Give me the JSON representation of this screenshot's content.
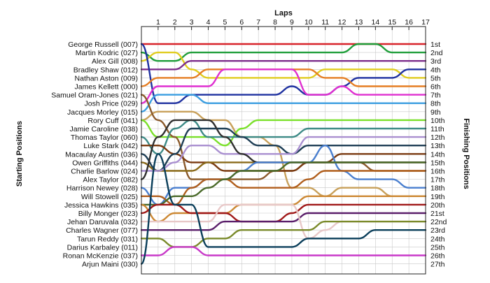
{
  "chart_data": {
    "type": "line",
    "title": "",
    "xlabel": "Laps",
    "ylabel_left": "Starting Positions",
    "ylabel_right": "Finishing Positions",
    "laps": [
      1,
      2,
      3,
      4,
      5,
      6,
      7,
      8,
      9,
      10,
      11,
      12,
      13,
      14,
      15,
      16,
      17
    ],
    "xlim": [
      0,
      17
    ],
    "ylim": [
      1,
      27
    ],
    "grid": true,
    "drivers": [
      "George Russell (007)",
      "Martin Kodric (027)",
      "Alex Gill (008)",
      "Bradley Shaw (012)",
      "Nathan Aston (009)",
      "James Kellett (000)",
      "Samuel Oram-Jones (021)",
      "Josh Price (029)",
      "Jacques Morley (015)",
      "Rory Cuff (041)",
      "Jamie Caroline (038)",
      "Thomas Taylor (060)",
      "Luke Stark (042)",
      "Macaulay Austin (036)",
      "Owen Griffiths (044)",
      "Charlie Barlow (024)",
      "Alex Taylor (082)",
      "Harrison Newey (028)",
      "Will Stowell (025)",
      "Jessica Hawkins (035)",
      "Billy Monger (023)",
      "Jehan Daruvala (032)",
      "Charles Wagner (077)",
      "Tarun Reddy (031)",
      "Darius Karbaley (011)",
      "Ronan McKenzie (037)",
      "Arjun Maini (030)"
    ],
    "finishing_labels": [
      "1st",
      "2nd",
      "3rd",
      "4th",
      "5th",
      "6th",
      "7th",
      "8th",
      "9th",
      "10th",
      "11th",
      "12th",
      "13th",
      "14th",
      "15th",
      "16th",
      "17th",
      "18th",
      "19th",
      "20th",
      "21st",
      "22nd",
      "23rd",
      "24th",
      "25th",
      "26th",
      "27th"
    ],
    "series": [
      {
        "color": "#d8232a",
        "positions": [
          1,
          1,
          1,
          1,
          1,
          1,
          1,
          1,
          1,
          1,
          1,
          1,
          1,
          1,
          1,
          1,
          1,
          1
        ]
      },
      {
        "color": "#1f9e3a",
        "positions": [
          2,
          3,
          3,
          2,
          2,
          2,
          2,
          2,
          2,
          2,
          2,
          2,
          2,
          1,
          1,
          2,
          2,
          2
        ]
      },
      {
        "color": "#e0cc1e",
        "positions": [
          3,
          2,
          2,
          4,
          5,
          5,
          5,
          5,
          5,
          5,
          5,
          4,
          4,
          4,
          4,
          4,
          5,
          5
        ]
      },
      {
        "color": "#7d2f8c",
        "positions": [
          4,
          4,
          4,
          3,
          3,
          3,
          3,
          3,
          3,
          3,
          3,
          3,
          3,
          3,
          3,
          3,
          3,
          3
        ]
      },
      {
        "color": "#1f31a0",
        "positions": [
          1,
          8,
          8,
          7,
          7,
          7,
          7,
          7,
          7,
          6,
          7,
          7,
          6,
          5,
          5,
          5,
          4,
          4
        ]
      },
      {
        "color": "#e57e23",
        "positions": [
          6,
          5,
          5,
          5,
          4,
          4,
          4,
          4,
          4,
          4,
          4,
          5,
          5,
          6,
          6,
          6,
          6,
          6
        ]
      },
      {
        "color": "#df2fd0",
        "positions": [
          8,
          6,
          6,
          6,
          6,
          4,
          4,
          4,
          4,
          4,
          7,
          7,
          6,
          7,
          7,
          7,
          7,
          7
        ]
      },
      {
        "color": "#3a9de0",
        "positions": [
          9,
          7,
          7,
          7,
          8,
          8,
          8,
          8,
          8,
          8,
          8,
          8,
          8,
          8,
          8,
          8,
          8,
          8
        ]
      },
      {
        "color": "#c8a05a",
        "positions": [
          10,
          9,
          9,
          9,
          10,
          10,
          12,
          12,
          13,
          18,
          18,
          19,
          18,
          18,
          18,
          19,
          19,
          19
        ]
      },
      {
        "color": "#7ae02a",
        "positions": [
          10,
          12,
          12,
          12,
          12,
          13,
          11,
          10,
          10,
          10,
          10,
          10,
          10,
          10,
          10,
          10,
          10,
          10
        ]
      },
      {
        "color": "#8b5a2b",
        "positions": [
          7,
          10,
          12,
          17,
          17,
          17,
          17,
          17,
          16,
          16,
          15,
          15,
          15,
          15,
          16,
          16,
          16,
          16
        ]
      },
      {
        "color": "#3d8a86",
        "positions": [
          12,
          14,
          11,
          10,
          12,
          12,
          12,
          12,
          12,
          12,
          11,
          11,
          11,
          11,
          11,
          11,
          11,
          11
        ]
      },
      {
        "color": "#7a3a10",
        "positions": [
          13,
          13,
          14,
          15,
          15,
          16,
          16,
          16,
          16,
          16,
          15,
          15,
          14,
          14,
          14,
          14,
          14,
          14
        ]
      },
      {
        "color": "#1e3e55",
        "positions": [
          14,
          16,
          14,
          11,
          11,
          11,
          12,
          13,
          13,
          14,
          13,
          13,
          13,
          13,
          13,
          13,
          13,
          13
        ]
      },
      {
        "color": "#8a6a1a",
        "positions": [
          15,
          16,
          16,
          16,
          15,
          15,
          15,
          15,
          15,
          15,
          15,
          15,
          15,
          15,
          15,
          15,
          15,
          15
        ]
      },
      {
        "color": "#a98fd0",
        "positions": [
          16,
          16,
          15,
          13,
          13,
          14,
          14,
          14,
          14,
          14,
          12,
          12,
          12,
          12,
          12,
          12,
          12,
          12
        ]
      },
      {
        "color": "#2f2f2f",
        "positions": [
          17,
          12,
          10,
          10,
          10,
          12,
          14,
          15,
          15,
          15,
          15,
          15,
          15,
          15,
          15,
          15,
          15,
          15
        ]
      },
      {
        "color": "#4a7fcf",
        "positions": [
          18,
          20,
          18,
          18,
          17,
          17,
          16,
          15,
          15,
          15,
          15,
          13,
          16,
          17,
          17,
          17,
          18,
          18
        ]
      },
      {
        "color": "#b05e1c",
        "positions": [
          19,
          19,
          20,
          18,
          17,
          17,
          18,
          18,
          18,
          18,
          17,
          16,
          16,
          16,
          16,
          16,
          16,
          16
        ]
      },
      {
        "color": "#4a6a2a",
        "positions": [
          20,
          20,
          19,
          19,
          18,
          17,
          16,
          16,
          16,
          15,
          15,
          15,
          15,
          15,
          15,
          15,
          15,
          15
        ]
      },
      {
        "color": "#cc8833",
        "positions": [
          20,
          22,
          21,
          21,
          21,
          21,
          20,
          20,
          20,
          20,
          19,
          19,
          19,
          19,
          19,
          19,
          19,
          19
        ]
      },
      {
        "color": "#a01818",
        "positions": [
          21,
          20,
          20,
          21,
          21,
          21,
          22,
          22,
          22,
          21,
          20,
          20,
          20,
          20,
          20,
          20,
          20,
          20
        ]
      },
      {
        "color": "#5a1e6a",
        "positions": [
          23,
          23,
          23,
          23,
          23,
          22,
          22,
          22,
          22,
          22,
          21,
          21,
          21,
          21,
          21,
          21,
          21,
          21
        ]
      },
      {
        "color": "#e8c8c8",
        "positions": [
          22,
          22,
          22,
          22,
          22,
          20,
          20,
          20,
          20,
          20,
          24,
          23,
          22,
          22,
          22,
          22,
          22,
          22
        ]
      },
      {
        "color": "#7a8a2a",
        "positions": [
          24,
          24,
          25,
          25,
          24,
          24,
          23,
          23,
          23,
          23,
          23,
          22,
          22,
          22,
          22,
          22,
          22,
          22
        ]
      },
      {
        "color": "#c838c8",
        "positions": [
          26,
          26,
          25,
          25,
          26,
          26,
          26,
          26,
          26,
          26,
          26,
          26,
          26,
          26,
          26,
          26,
          26,
          26
        ]
      },
      {
        "color": "#0a3e5a",
        "positions": [
          27,
          14,
          20,
          20,
          25,
          25,
          25,
          25,
          25,
          25,
          24,
          24,
          24,
          24,
          23,
          23,
          23,
          23
        ]
      }
    ]
  }
}
